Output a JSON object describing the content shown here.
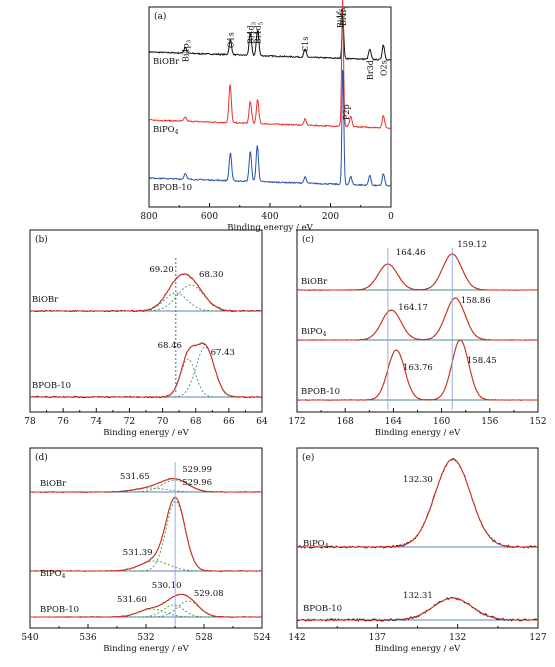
{
  "chart_data": [
    {
      "panel": "(a)",
      "type": "line",
      "xlabel": "Binding energy / eV",
      "xlim": [
        800,
        0
      ],
      "xticks": [
        "800",
        "600",
        "400",
        "200",
        "0"
      ],
      "series": [
        {
          "name": "BiOBr",
          "color": "#111111",
          "peaks": [
            [
              680,
              6
            ],
            [
              531,
              15
            ],
            [
              465,
              22
            ],
            [
              441,
              26
            ],
            [
              284,
              8
            ],
            [
              159,
              40
            ],
            [
              70,
              10
            ],
            [
              25,
              15
            ]
          ]
        },
        {
          "name": "BiPO4",
          "color": "#e8322a",
          "peaks": [
            [
              680,
              4
            ],
            [
              532,
              38
            ],
            [
              465,
              22
            ],
            [
              441,
              24
            ],
            [
              284,
              6
            ],
            [
              160,
              128
            ],
            [
              133,
              10
            ],
            [
              25,
              12
            ]
          ]
        },
        {
          "name": "BPOB-10",
          "color": "#2454a6",
          "peaks": [
            [
              680,
              6
            ],
            [
              531,
              28
            ],
            [
              465,
              30
            ],
            [
              442,
              36
            ],
            [
              284,
              6
            ],
            [
              159,
              120
            ],
            [
              133,
              8
            ],
            [
              70,
              10
            ],
            [
              25,
              12
            ]
          ]
        }
      ],
      "annotations": [
        "Bi4p3",
        "O1s",
        "Bi4d3",
        "Bi4d5",
        "C1s",
        "Bi4f5",
        "Bi4f7",
        "Br3d",
        "O2s",
        "P2p"
      ]
    },
    {
      "panel": "(b)",
      "type": "line",
      "xlabel": "Binding energy / eV",
      "xlim": [
        78,
        64
      ],
      "xticks": [
        "78",
        "76",
        "74",
        "72",
        "70",
        "68",
        "66",
        "64"
      ],
      "series_labels": [
        "BiOBr",
        "BPOB-10"
      ],
      "peak_labels": [
        "69.20",
        "68.30",
        "68.46",
        "67.43"
      ],
      "fits": [
        {
          "sample": "BiOBr",
          "peaks": [
            [
              69.2,
              18
            ],
            [
              68.3,
              26
            ]
          ]
        },
        {
          "sample": "BPOB-10",
          "peaks": [
            [
              68.46,
              38
            ],
            [
              67.43,
              50
            ]
          ]
        }
      ],
      "reference_line": 69.2
    },
    {
      "panel": "(c)",
      "type": "line",
      "xlabel": "Binding energy / eV",
      "xlim": [
        172,
        152
      ],
      "xticks": [
        "172",
        "168",
        "164",
        "160",
        "156",
        "152"
      ],
      "series_labels": [
        "BiOBr",
        "BiPO4",
        "BPOB-10"
      ],
      "peak_labels": [
        "164.46",
        "159.12",
        "164.17",
        "158.86",
        "163.76",
        "158.45"
      ],
      "fits": [
        {
          "sample": "BiOBr",
          "peaks": [
            [
              164.46,
              26
            ],
            [
              159.12,
              36
            ]
          ]
        },
        {
          "sample": "BiPO4",
          "peaks": [
            [
              164.17,
              30
            ],
            [
              158.86,
              42
            ]
          ]
        },
        {
          "sample": "BPOB-10",
          "peaks": [
            [
              163.76,
              50
            ],
            [
              158.45,
              60
            ]
          ]
        }
      ],
      "reference_lines": [
        164.46,
        159.12
      ]
    },
    {
      "panel": "(d)",
      "type": "line",
      "xlabel": "Binding energy / eV",
      "xlim": [
        540,
        524
      ],
      "xticks": [
        "540",
        "536",
        "532",
        "528",
        "524"
      ],
      "series_labels": [
        "BiOBr",
        "BiPO4",
        "BPOB-10"
      ],
      "peak_labels": [
        "531.65",
        "529.99",
        "529.96",
        "531.39",
        "530.10",
        "531.60",
        "529.08"
      ],
      "fits": [
        {
          "sample": "BiOBr",
          "peaks": [
            [
              531.65,
              4
            ],
            [
              529.99,
              12
            ]
          ]
        },
        {
          "sample": "BiPO4",
          "peaks": [
            [
              531.39,
              10
            ],
            [
              529.96,
              70
            ]
          ]
        },
        {
          "sample": "BPOB-10",
          "peaks": [
            [
              531.6,
              8
            ],
            [
              530.1,
              12
            ],
            [
              529.08,
              16
            ]
          ]
        }
      ],
      "reference_line": 529.99
    },
    {
      "panel": "(e)",
      "type": "line",
      "xlabel": "Binding energy / eV",
      "xlim": [
        142,
        127
      ],
      "xticks": [
        "142",
        "137",
        "132",
        "127"
      ],
      "series_labels": [
        "BiPO4",
        "BPOB-10"
      ],
      "peak_labels": [
        "132.30",
        "132.31"
      ],
      "fits": [
        {
          "sample": "BiPO4",
          "peaks": [
            [
              132.3,
              88
            ]
          ]
        },
        {
          "sample": "BPOB-10",
          "peaks": [
            [
              132.31,
              22
            ]
          ]
        }
      ]
    }
  ]
}
